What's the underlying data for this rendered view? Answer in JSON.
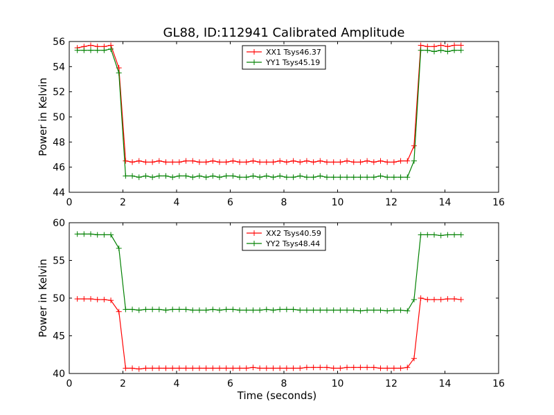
{
  "figure": {
    "title": "GL88, ID:112941 Calibrated Amplitude"
  },
  "chart_data": [
    {
      "type": "line",
      "title": "GL88, ID:112941 Calibrated Amplitude",
      "xlabel": "",
      "ylabel": "Power in Kelvin",
      "xlim": [
        0,
        16
      ],
      "ylim": [
        44,
        56
      ],
      "xticks": [
        0,
        2,
        4,
        6,
        8,
        10,
        12,
        14,
        16
      ],
      "yticks": [
        44,
        46,
        48,
        50,
        52,
        54,
        56
      ],
      "grid": false,
      "legend_position": "top-center",
      "series": [
        {
          "name": "XX1 Tsys46.37",
          "color": "#ff0000",
          "x": [
            0.3,
            0.55,
            0.8,
            1.05,
            1.3,
            1.55,
            1.85,
            2.1,
            2.35,
            2.6,
            2.85,
            3.1,
            3.35,
            3.6,
            3.85,
            4.1,
            4.35,
            4.6,
            4.85,
            5.1,
            5.35,
            5.6,
            5.85,
            6.1,
            6.35,
            6.6,
            6.85,
            7.1,
            7.35,
            7.6,
            7.85,
            8.1,
            8.35,
            8.6,
            8.85,
            9.1,
            9.35,
            9.6,
            9.85,
            10.1,
            10.35,
            10.6,
            10.85,
            11.1,
            11.35,
            11.6,
            11.85,
            12.1,
            12.35,
            12.6,
            12.85,
            13.1,
            13.35,
            13.6,
            13.85,
            14.1,
            14.35,
            14.6
          ],
          "y": [
            55.5,
            55.6,
            55.7,
            55.6,
            55.6,
            55.7,
            53.9,
            46.5,
            46.4,
            46.5,
            46.4,
            46.4,
            46.5,
            46.4,
            46.4,
            46.4,
            46.5,
            46.5,
            46.4,
            46.4,
            46.5,
            46.4,
            46.4,
            46.5,
            46.4,
            46.4,
            46.5,
            46.4,
            46.4,
            46.4,
            46.5,
            46.4,
            46.5,
            46.4,
            46.5,
            46.4,
            46.5,
            46.4,
            46.4,
            46.4,
            46.5,
            46.4,
            46.4,
            46.5,
            46.4,
            46.5,
            46.4,
            46.4,
            46.5,
            46.5,
            47.7,
            55.7,
            55.6,
            55.6,
            55.7,
            55.6,
            55.7,
            55.7
          ]
        },
        {
          "name": "YY1 Tsys45.19",
          "color": "#008000",
          "x": [
            0.3,
            0.55,
            0.8,
            1.05,
            1.3,
            1.55,
            1.85,
            2.1,
            2.35,
            2.6,
            2.85,
            3.1,
            3.35,
            3.6,
            3.85,
            4.1,
            4.35,
            4.6,
            4.85,
            5.1,
            5.35,
            5.6,
            5.85,
            6.1,
            6.35,
            6.6,
            6.85,
            7.1,
            7.35,
            7.6,
            7.85,
            8.1,
            8.35,
            8.6,
            8.85,
            9.1,
            9.35,
            9.6,
            9.85,
            10.1,
            10.35,
            10.6,
            10.85,
            11.1,
            11.35,
            11.6,
            11.85,
            12.1,
            12.35,
            12.6,
            12.85,
            13.1,
            13.35,
            13.6,
            13.85,
            14.1,
            14.35,
            14.6
          ],
          "y": [
            55.3,
            55.3,
            55.3,
            55.3,
            55.3,
            55.4,
            53.5,
            45.3,
            45.3,
            45.2,
            45.3,
            45.2,
            45.3,
            45.3,
            45.2,
            45.3,
            45.3,
            45.2,
            45.3,
            45.2,
            45.3,
            45.2,
            45.3,
            45.3,
            45.2,
            45.2,
            45.3,
            45.2,
            45.3,
            45.2,
            45.3,
            45.2,
            45.2,
            45.3,
            45.2,
            45.2,
            45.3,
            45.2,
            45.2,
            45.2,
            45.2,
            45.2,
            45.2,
            45.2,
            45.2,
            45.3,
            45.2,
            45.2,
            45.2,
            45.2,
            46.5,
            55.3,
            55.3,
            55.2,
            55.3,
            55.2,
            55.3,
            55.3
          ]
        }
      ]
    },
    {
      "type": "line",
      "title": "",
      "xlabel": "Time (seconds)",
      "ylabel": "Power in Kelvin",
      "xlim": [
        0,
        16
      ],
      "ylim": [
        40,
        60
      ],
      "xticks": [
        0,
        2,
        4,
        6,
        8,
        10,
        12,
        14,
        16
      ],
      "yticks": [
        40,
        45,
        50,
        55,
        60
      ],
      "grid": false,
      "legend_position": "top-center",
      "series": [
        {
          "name": "XX2 Tsys40.59",
          "color": "#ff0000",
          "x": [
            0.3,
            0.55,
            0.8,
            1.05,
            1.3,
            1.55,
            1.85,
            2.1,
            2.35,
            2.6,
            2.85,
            3.1,
            3.35,
            3.6,
            3.85,
            4.1,
            4.35,
            4.6,
            4.85,
            5.1,
            5.35,
            5.6,
            5.85,
            6.1,
            6.35,
            6.6,
            6.85,
            7.1,
            7.35,
            7.6,
            7.85,
            8.1,
            8.35,
            8.6,
            8.85,
            9.1,
            9.35,
            9.6,
            9.85,
            10.1,
            10.35,
            10.6,
            10.85,
            11.1,
            11.35,
            11.6,
            11.85,
            12.1,
            12.35,
            12.6,
            12.85,
            13.1,
            13.35,
            13.6,
            13.85,
            14.1,
            14.35,
            14.6
          ],
          "y": [
            49.9,
            49.9,
            49.9,
            49.8,
            49.8,
            49.7,
            48.2,
            40.7,
            40.7,
            40.6,
            40.7,
            40.7,
            40.7,
            40.7,
            40.7,
            40.7,
            40.7,
            40.7,
            40.7,
            40.7,
            40.7,
            40.7,
            40.7,
            40.7,
            40.7,
            40.7,
            40.8,
            40.7,
            40.7,
            40.7,
            40.7,
            40.7,
            40.7,
            40.7,
            40.8,
            40.8,
            40.8,
            40.8,
            40.7,
            40.7,
            40.8,
            40.8,
            40.8,
            40.8,
            40.8,
            40.7,
            40.7,
            40.7,
            40.7,
            40.8,
            42.0,
            50.0,
            49.8,
            49.8,
            49.8,
            49.9,
            49.9,
            49.8
          ]
        },
        {
          "name": "YY2 Tsys48.44",
          "color": "#008000",
          "x": [
            0.3,
            0.55,
            0.8,
            1.05,
            1.3,
            1.55,
            1.85,
            2.1,
            2.35,
            2.6,
            2.85,
            3.1,
            3.35,
            3.6,
            3.85,
            4.1,
            4.35,
            4.6,
            4.85,
            5.1,
            5.35,
            5.6,
            5.85,
            6.1,
            6.35,
            6.6,
            6.85,
            7.1,
            7.35,
            7.6,
            7.85,
            8.1,
            8.35,
            8.6,
            8.85,
            9.1,
            9.35,
            9.6,
            9.85,
            10.1,
            10.35,
            10.6,
            10.85,
            11.1,
            11.35,
            11.6,
            11.85,
            12.1,
            12.35,
            12.6,
            12.85,
            13.1,
            13.35,
            13.6,
            13.85,
            14.1,
            14.35,
            14.6
          ],
          "y": [
            58.5,
            58.5,
            58.5,
            58.4,
            58.4,
            58.4,
            56.6,
            48.5,
            48.5,
            48.4,
            48.5,
            48.5,
            48.5,
            48.4,
            48.5,
            48.5,
            48.5,
            48.4,
            48.4,
            48.4,
            48.5,
            48.4,
            48.5,
            48.5,
            48.4,
            48.4,
            48.4,
            48.4,
            48.5,
            48.4,
            48.5,
            48.5,
            48.5,
            48.4,
            48.4,
            48.4,
            48.4,
            48.4,
            48.4,
            48.4,
            48.4,
            48.4,
            48.3,
            48.4,
            48.4,
            48.4,
            48.3,
            48.4,
            48.4,
            48.3,
            49.8,
            58.4,
            58.4,
            58.4,
            58.3,
            58.4,
            58.4,
            58.4
          ]
        }
      ]
    }
  ]
}
